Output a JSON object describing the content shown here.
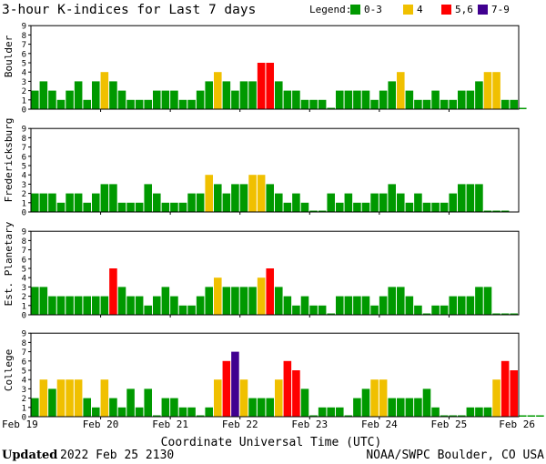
{
  "chart_data": {
    "type": "bar",
    "title": "3-hour K-indices for Last 7 days",
    "legend": {
      "label": "Legend:",
      "position": "top-right",
      "entries": [
        {
          "label": "0-3",
          "color": "#009900"
        },
        {
          "label": "4",
          "color": "#f0c000"
        },
        {
          "label": "5,6",
          "color": "#ff0000"
        },
        {
          "label": "7-9",
          "color": "#400090"
        }
      ]
    },
    "ylim": [
      0,
      9
    ],
    "yticks": [
      "0",
      "1",
      "2",
      "3",
      "4",
      "5",
      "6",
      "7",
      "8",
      "9"
    ],
    "xlabel": "Coordinate Universal Time (UTC)",
    "date_labels": [
      "Feb 19",
      "Feb 20",
      "Feb 21",
      "Feb 22",
      "Feb 23",
      "Feb 24",
      "Feb 25",
      "Feb 26"
    ],
    "intervals_per_day": 8,
    "grid": false,
    "series": [
      {
        "name": "Boulder",
        "values": [
          2,
          3,
          2,
          1,
          2,
          3,
          1,
          3,
          4,
          3,
          2,
          1,
          1,
          1,
          2,
          2,
          2,
          1,
          1,
          2,
          3,
          4,
          3,
          2,
          3,
          3,
          5,
          5,
          3,
          2,
          2,
          1,
          1,
          1,
          0,
          2,
          2,
          2,
          2,
          1,
          2,
          3,
          4,
          2,
          1,
          1,
          2,
          1,
          1,
          2,
          2,
          3,
          4,
          4,
          1,
          1,
          0
        ]
      },
      {
        "name": "Fredericksburg",
        "values": [
          2,
          2,
          2,
          1,
          2,
          2,
          1,
          2,
          3,
          3,
          1,
          1,
          1,
          3,
          2,
          1,
          1,
          1,
          2,
          2,
          4,
          3,
          2,
          3,
          3,
          4,
          4,
          3,
          2,
          1,
          2,
          1,
          0,
          0,
          2,
          1,
          2,
          1,
          1,
          2,
          2,
          3,
          2,
          1,
          2,
          1,
          1,
          1,
          2,
          3,
          3,
          3,
          0,
          0,
          0
        ]
      },
      {
        "name": "Est. Planetary",
        "values": [
          3,
          3,
          2,
          2,
          2,
          2,
          2,
          2,
          2,
          5,
          3,
          2,
          2,
          1,
          2,
          3,
          2,
          1,
          1,
          2,
          3,
          4,
          3,
          3,
          3,
          3,
          4,
          5,
          3,
          2,
          1,
          2,
          1,
          1,
          0,
          2,
          2,
          2,
          2,
          1,
          2,
          3,
          3,
          2,
          1,
          0,
          1,
          1,
          2,
          2,
          2,
          3,
          3,
          0,
          0,
          0
        ]
      },
      {
        "name": "College",
        "values": [
          2,
          4,
          3,
          4,
          4,
          4,
          2,
          1,
          4,
          2,
          1,
          3,
          1,
          3,
          0,
          2,
          2,
          1,
          1,
          0,
          1,
          4,
          6,
          7,
          4,
          2,
          2,
          2,
          4,
          6,
          5,
          3,
          0,
          1,
          1,
          1,
          0,
          2,
          3,
          4,
          4,
          2,
          2,
          2,
          2,
          3,
          1,
          0,
          0,
          0,
          1,
          1,
          1,
          4,
          6,
          5,
          0,
          0,
          0
        ]
      }
    ]
  },
  "footer": {
    "updated_word": "Updated",
    "updated_stamp": "2022 Feb 25 2130",
    "credit": "NOAA/SWPC Boulder, CO USA"
  }
}
